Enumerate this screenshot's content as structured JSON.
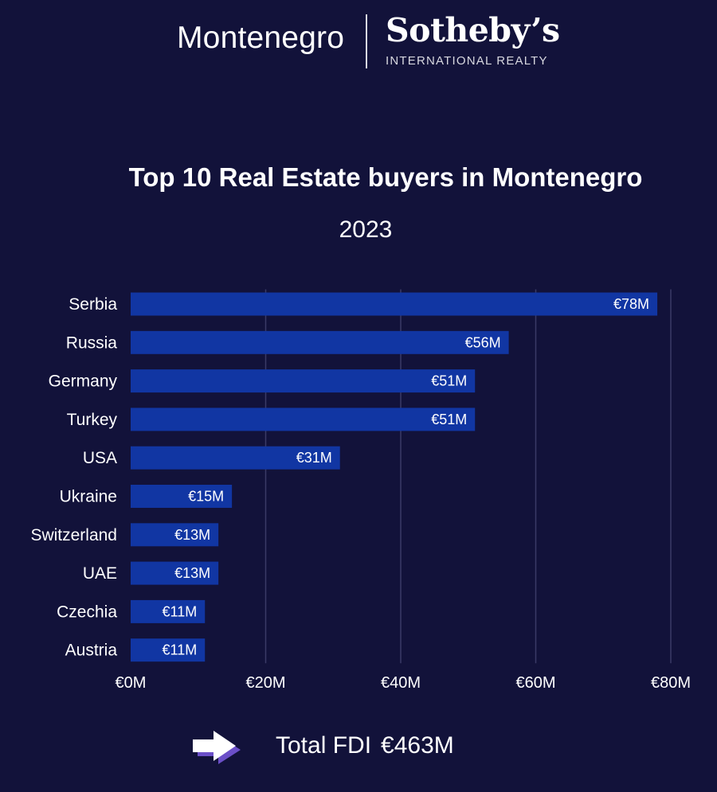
{
  "brand": {
    "left": "Montenegro",
    "name": "Sotheby’s",
    "sub": "INTERNATIONAL REALTY"
  },
  "colors": {
    "background": "#12123a",
    "bar": "#1136a3",
    "grid": "#3a3a66"
  },
  "footer": {
    "icon": "arrow-right-icon",
    "label": "Total FDI",
    "value": "€463M"
  },
  "chart_data": {
    "type": "bar",
    "orientation": "horizontal",
    "title": "Top 10 Real Estate buyers in Montenegro",
    "subtitle": "2023",
    "categories": [
      "Serbia",
      "Russia",
      "Germany",
      "Turkey",
      "USA",
      "Ukraine",
      "Switzerland",
      "UAE",
      "Czechia",
      "Austria"
    ],
    "values": [
      78,
      56,
      51,
      51,
      31,
      15,
      13,
      13,
      11,
      11
    ],
    "data_labels": [
      "€78M",
      "€56M",
      "€51M",
      "€51M",
      "€31M",
      "€15M",
      "€13M",
      "€13M",
      "€11M",
      "€11M"
    ],
    "xlim": [
      0,
      80
    ],
    "xticks": [
      0,
      20,
      40,
      60,
      80
    ],
    "xtick_labels": [
      "€0M",
      "€20M",
      "€40M",
      "€60M",
      "€80M"
    ],
    "grid": true,
    "legend": "none"
  }
}
